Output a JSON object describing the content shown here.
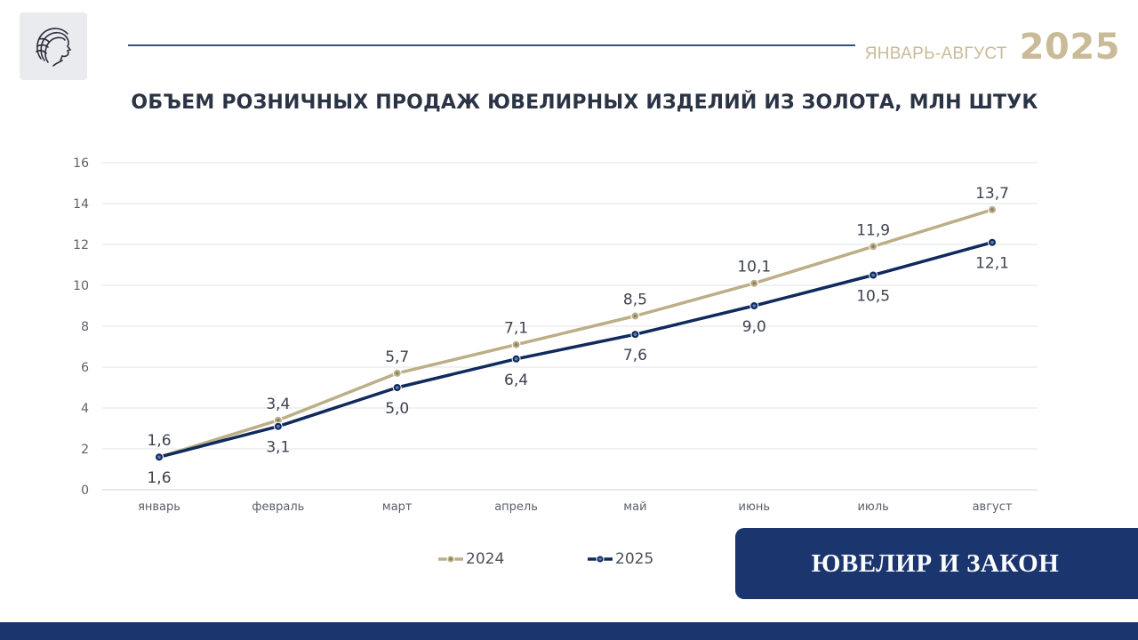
{
  "logo": {
    "icon": "profile-logo-icon"
  },
  "header": {
    "period_label": "ЯНВАРЬ-АВГУСТ",
    "year": "2025"
  },
  "colors": {
    "accent_gold": "#bcae87",
    "navy": "#0f2a5c",
    "brand_navy": "#1b356f"
  },
  "chart_data": {
    "type": "line",
    "title": "ОБЪЕМ РОЗНИЧНЫХ ПРОДАЖ ЮВЕЛИРНЫХ ИЗДЕЛИЙ ИЗ ЗОЛОТА, МЛН ШТУК",
    "categories": [
      "январь",
      "февраль",
      "март",
      "апрель",
      "май",
      "июнь",
      "июль",
      "август"
    ],
    "series": [
      {
        "name": "2024",
        "color": "#bcae87",
        "values": [
          1.6,
          3.4,
          5.7,
          7.1,
          8.5,
          10.1,
          11.9,
          13.7
        ],
        "labels": [
          "1,6",
          "3,4",
          "5,7",
          "7,1",
          "8,5",
          "10,1",
          "11,9",
          "13,7"
        ],
        "label_position": "above"
      },
      {
        "name": "2025",
        "color": "#0f2a5c",
        "values": [
          1.6,
          3.1,
          5.0,
          6.4,
          7.6,
          9.0,
          10.5,
          12.1
        ],
        "labels": [
          "1,6",
          "3,1",
          "5,0",
          "6,4",
          "7,6",
          "9,0",
          "10,5",
          "12,1"
        ],
        "label_position": "below"
      }
    ],
    "ylim": [
      0,
      16
    ],
    "yticks": [
      "0",
      "2",
      "4",
      "6",
      "8",
      "10",
      "12",
      "14",
      "16"
    ],
    "grid": true,
    "legend": "bottom"
  },
  "brand": {
    "name": "ЮВЕЛИР И ЗАКОН"
  }
}
